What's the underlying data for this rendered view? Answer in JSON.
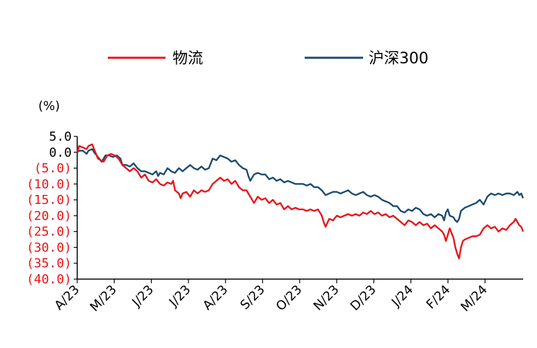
{
  "chart_data": {
    "type": "line",
    "unit_label": "(%)",
    "legend_position": "top",
    "grid": false,
    "ylim": [
      -40,
      5
    ],
    "x_range": [
      0,
      11.85
    ],
    "y_ticks": [
      {
        "value": 5,
        "label": "5.0",
        "color": "#000000"
      },
      {
        "value": 0,
        "label": "0.0",
        "color": "#000000"
      },
      {
        "value": -5,
        "label": "(5.0)",
        "color": "#e8141a"
      },
      {
        "value": -10,
        "label": "(10.0)",
        "color": "#e8141a"
      },
      {
        "value": -15,
        "label": "(15.0)",
        "color": "#e8141a"
      },
      {
        "value": -20,
        "label": "(20.0)",
        "color": "#e8141a"
      },
      {
        "value": -25,
        "label": "(25.0)",
        "color": "#e8141a"
      },
      {
        "value": -30,
        "label": "(30.0)",
        "color": "#e8141a"
      },
      {
        "value": -35,
        "label": "(35.0)",
        "color": "#e8141a"
      },
      {
        "value": -40,
        "label": "(40.0)",
        "color": "#e8141a"
      }
    ],
    "categories": [
      "A/23",
      "M/23",
      "J/23",
      "J/23",
      "A/23",
      "S/23",
      "O/23",
      "N/23",
      "D/23",
      "J/24",
      "F/24",
      "M/24"
    ],
    "series": [
      {
        "name": "物流",
        "color": "#e8141a",
        "points": [
          [
            0,
            0
          ],
          [
            0.05,
            2
          ],
          [
            0.15,
            1.5
          ],
          [
            0.25,
            1
          ],
          [
            0.3,
            2
          ],
          [
            0.4,
            2.5
          ],
          [
            0.45,
            1
          ],
          [
            0.55,
            -2
          ],
          [
            0.7,
            -3
          ],
          [
            0.8,
            -1
          ],
          [
            0.9,
            -0.5
          ],
          [
            1.0,
            -1
          ],
          [
            1.1,
            -2
          ],
          [
            1.2,
            -4
          ],
          [
            1.3,
            -5
          ],
          [
            1.4,
            -6
          ],
          [
            1.5,
            -5
          ],
          [
            1.6,
            -6
          ],
          [
            1.7,
            -8
          ],
          [
            1.8,
            -7
          ],
          [
            1.9,
            -9
          ],
          [
            2.0,
            -9.5
          ],
          [
            2.1,
            -8.5
          ],
          [
            2.2,
            -10
          ],
          [
            2.3,
            -10.5
          ],
          [
            2.4,
            -9.5
          ],
          [
            2.5,
            -10
          ],
          [
            2.55,
            -9
          ],
          [
            2.6,
            -12
          ],
          [
            2.7,
            -13
          ],
          [
            2.75,
            -14.5
          ],
          [
            2.8,
            -13
          ],
          [
            2.9,
            -12.5
          ],
          [
            3.0,
            -14
          ],
          [
            3.1,
            -12
          ],
          [
            3.2,
            -13
          ],
          [
            3.3,
            -12
          ],
          [
            3.4,
            -12.5
          ],
          [
            3.5,
            -12
          ],
          [
            3.6,
            -10
          ],
          [
            3.7,
            -9
          ],
          [
            3.8,
            -8
          ],
          [
            3.9,
            -9
          ],
          [
            4.0,
            -8.5
          ],
          [
            4.1,
            -10
          ],
          [
            4.2,
            -9
          ],
          [
            4.3,
            -11
          ],
          [
            4.4,
            -12
          ],
          [
            4.5,
            -12
          ],
          [
            4.6,
            -14
          ],
          [
            4.7,
            -16
          ],
          [
            4.8,
            -14
          ],
          [
            4.9,
            -15
          ],
          [
            5.0,
            -14.5
          ],
          [
            5.1,
            -16
          ],
          [
            5.2,
            -15
          ],
          [
            5.3,
            -16.5
          ],
          [
            5.4,
            -16
          ],
          [
            5.5,
            -18
          ],
          [
            5.6,
            -17
          ],
          [
            5.7,
            -18
          ],
          [
            5.8,
            -17.5
          ],
          [
            5.9,
            -18
          ],
          [
            6.0,
            -18
          ],
          [
            6.1,
            -18.5
          ],
          [
            6.2,
            -18
          ],
          [
            6.3,
            -18.5
          ],
          [
            6.4,
            -18
          ],
          [
            6.5,
            -20
          ],
          [
            6.55,
            -22
          ],
          [
            6.6,
            -23.5
          ],
          [
            6.7,
            -21
          ],
          [
            6.8,
            -21.5
          ],
          [
            6.9,
            -20
          ],
          [
            7.0,
            -20.5
          ],
          [
            7.1,
            -20
          ],
          [
            7.2,
            -19.5
          ],
          [
            7.3,
            -20
          ],
          [
            7.4,
            -19.5
          ],
          [
            7.5,
            -20
          ],
          [
            7.6,
            -19
          ],
          [
            7.7,
            -19.5
          ],
          [
            7.8,
            -18.5
          ],
          [
            7.9,
            -19.5
          ],
          [
            8.0,
            -19
          ],
          [
            8.1,
            -20
          ],
          [
            8.2,
            -19.5
          ],
          [
            8.3,
            -20.5
          ],
          [
            8.4,
            -20
          ],
          [
            8.5,
            -21
          ],
          [
            8.6,
            -22
          ],
          [
            8.7,
            -23
          ],
          [
            8.8,
            -21.5
          ],
          [
            8.9,
            -22
          ],
          [
            9.0,
            -23
          ],
          [
            9.1,
            -22
          ],
          [
            9.2,
            -23
          ],
          [
            9.3,
            -22.5
          ],
          [
            9.4,
            -24
          ],
          [
            9.5,
            -23
          ],
          [
            9.6,
            -24
          ],
          [
            9.7,
            -25
          ],
          [
            9.75,
            -26
          ],
          [
            9.8,
            -28
          ],
          [
            9.85,
            -26
          ],
          [
            9.9,
            -24
          ],
          [
            10.0,
            -27
          ],
          [
            10.05,
            -30
          ],
          [
            10.1,
            -32
          ],
          [
            10.15,
            -33.5
          ],
          [
            10.2,
            -30
          ],
          [
            10.25,
            -28
          ],
          [
            10.3,
            -27.5
          ],
          [
            10.4,
            -27
          ],
          [
            10.5,
            -26.5
          ],
          [
            10.6,
            -26.5
          ],
          [
            10.7,
            -26
          ],
          [
            10.8,
            -24
          ],
          [
            10.9,
            -23
          ],
          [
            11.0,
            -24
          ],
          [
            11.1,
            -23.5
          ],
          [
            11.2,
            -25
          ],
          [
            11.3,
            -24
          ],
          [
            11.4,
            -24.5
          ],
          [
            11.5,
            -23
          ],
          [
            11.6,
            -22
          ],
          [
            11.65,
            -21
          ],
          [
            11.7,
            -22
          ],
          [
            11.75,
            -23
          ],
          [
            11.8,
            -23.5
          ],
          [
            11.85,
            -25
          ]
        ]
      },
      {
        "name": "沪深300",
        "color": "#1a4a72",
        "points": [
          [
            0,
            0
          ],
          [
            0.05,
            0.5
          ],
          [
            0.15,
            0.5
          ],
          [
            0.25,
            -0.5
          ],
          [
            0.3,
            0.5
          ],
          [
            0.4,
            1
          ],
          [
            0.45,
            0
          ],
          [
            0.55,
            -1.5
          ],
          [
            0.65,
            -3
          ],
          [
            0.75,
            -1
          ],
          [
            0.85,
            -1
          ],
          [
            0.95,
            -1.5
          ],
          [
            1.05,
            -1
          ],
          [
            1.15,
            -2
          ],
          [
            1.2,
            -4
          ],
          [
            1.3,
            -4
          ],
          [
            1.4,
            -4.5
          ],
          [
            1.5,
            -3.5
          ],
          [
            1.6,
            -5
          ],
          [
            1.7,
            -6
          ],
          [
            1.8,
            -6
          ],
          [
            1.9,
            -6.5
          ],
          [
            2.0,
            -7
          ],
          [
            2.1,
            -6
          ],
          [
            2.15,
            -7.5
          ],
          [
            2.2,
            -6.5
          ],
          [
            2.3,
            -7
          ],
          [
            2.4,
            -5
          ],
          [
            2.5,
            -6
          ],
          [
            2.6,
            -6.5
          ],
          [
            2.7,
            -5
          ],
          [
            2.8,
            -6
          ],
          [
            2.9,
            -5
          ],
          [
            3.0,
            -4
          ],
          [
            3.1,
            -5
          ],
          [
            3.2,
            -5.5
          ],
          [
            3.3,
            -4.5
          ],
          [
            3.4,
            -5.5
          ],
          [
            3.5,
            -5
          ],
          [
            3.6,
            -2
          ],
          [
            3.7,
            -2.5
          ],
          [
            3.8,
            -1
          ],
          [
            3.9,
            -1.5
          ],
          [
            4.0,
            -2
          ],
          [
            4.1,
            -3
          ],
          [
            4.2,
            -2.5
          ],
          [
            4.3,
            -4
          ],
          [
            4.4,
            -5
          ],
          [
            4.5,
            -5.5
          ],
          [
            4.55,
            -7.5
          ],
          [
            4.6,
            -9
          ],
          [
            4.7,
            -7
          ],
          [
            4.8,
            -6.5
          ],
          [
            4.9,
            -7
          ],
          [
            5.0,
            -7
          ],
          [
            5.1,
            -8.5
          ],
          [
            5.2,
            -8
          ],
          [
            5.3,
            -9
          ],
          [
            5.4,
            -8.5
          ],
          [
            5.5,
            -9.5
          ],
          [
            5.6,
            -9
          ],
          [
            5.7,
            -9.5
          ],
          [
            5.8,
            -10
          ],
          [
            5.9,
            -10
          ],
          [
            6.0,
            -10
          ],
          [
            6.1,
            -10.5
          ],
          [
            6.2,
            -10
          ],
          [
            6.3,
            -11
          ],
          [
            6.4,
            -11
          ],
          [
            6.5,
            -12
          ],
          [
            6.6,
            -13.5
          ],
          [
            6.7,
            -13
          ],
          [
            6.8,
            -12.5
          ],
          [
            6.9,
            -12.5
          ],
          [
            7.0,
            -13
          ],
          [
            7.1,
            -12.5
          ],
          [
            7.2,
            -12
          ],
          [
            7.3,
            -13
          ],
          [
            7.4,
            -13.5
          ],
          [
            7.5,
            -13
          ],
          [
            7.6,
            -12.5
          ],
          [
            7.7,
            -13.5
          ],
          [
            7.8,
            -14
          ],
          [
            7.9,
            -13.5
          ],
          [
            8.0,
            -14
          ],
          [
            8.1,
            -15
          ],
          [
            8.2,
            -15.5
          ],
          [
            8.3,
            -16
          ],
          [
            8.4,
            -17
          ],
          [
            8.5,
            -17
          ],
          [
            8.6,
            -18.5
          ],
          [
            8.7,
            -19
          ],
          [
            8.8,
            -18
          ],
          [
            8.9,
            -18.5
          ],
          [
            9.0,
            -17.5
          ],
          [
            9.1,
            -18
          ],
          [
            9.2,
            -19.5
          ],
          [
            9.3,
            -20
          ],
          [
            9.4,
            -19.5
          ],
          [
            9.5,
            -20.5
          ],
          [
            9.6,
            -19.5
          ],
          [
            9.7,
            -20
          ],
          [
            9.75,
            -21.5
          ],
          [
            9.8,
            -19
          ],
          [
            9.85,
            -18
          ],
          [
            9.9,
            -20
          ],
          [
            10.0,
            -20.5
          ],
          [
            10.05,
            -21.5
          ],
          [
            10.1,
            -22
          ],
          [
            10.15,
            -21
          ],
          [
            10.2,
            -18.5
          ],
          [
            10.3,
            -17.5
          ],
          [
            10.4,
            -17
          ],
          [
            10.5,
            -16.5
          ],
          [
            10.6,
            -16
          ],
          [
            10.7,
            -15
          ],
          [
            10.8,
            -16.5
          ],
          [
            10.9,
            -14
          ],
          [
            11.0,
            -13
          ],
          [
            11.1,
            -13.5
          ],
          [
            11.2,
            -13
          ],
          [
            11.3,
            -13.5
          ],
          [
            11.4,
            -13
          ],
          [
            11.5,
            -13
          ],
          [
            11.6,
            -13.5
          ],
          [
            11.7,
            -12.5
          ],
          [
            11.75,
            -13.5
          ],
          [
            11.8,
            -13
          ],
          [
            11.85,
            -14.5
          ]
        ]
      }
    ]
  }
}
